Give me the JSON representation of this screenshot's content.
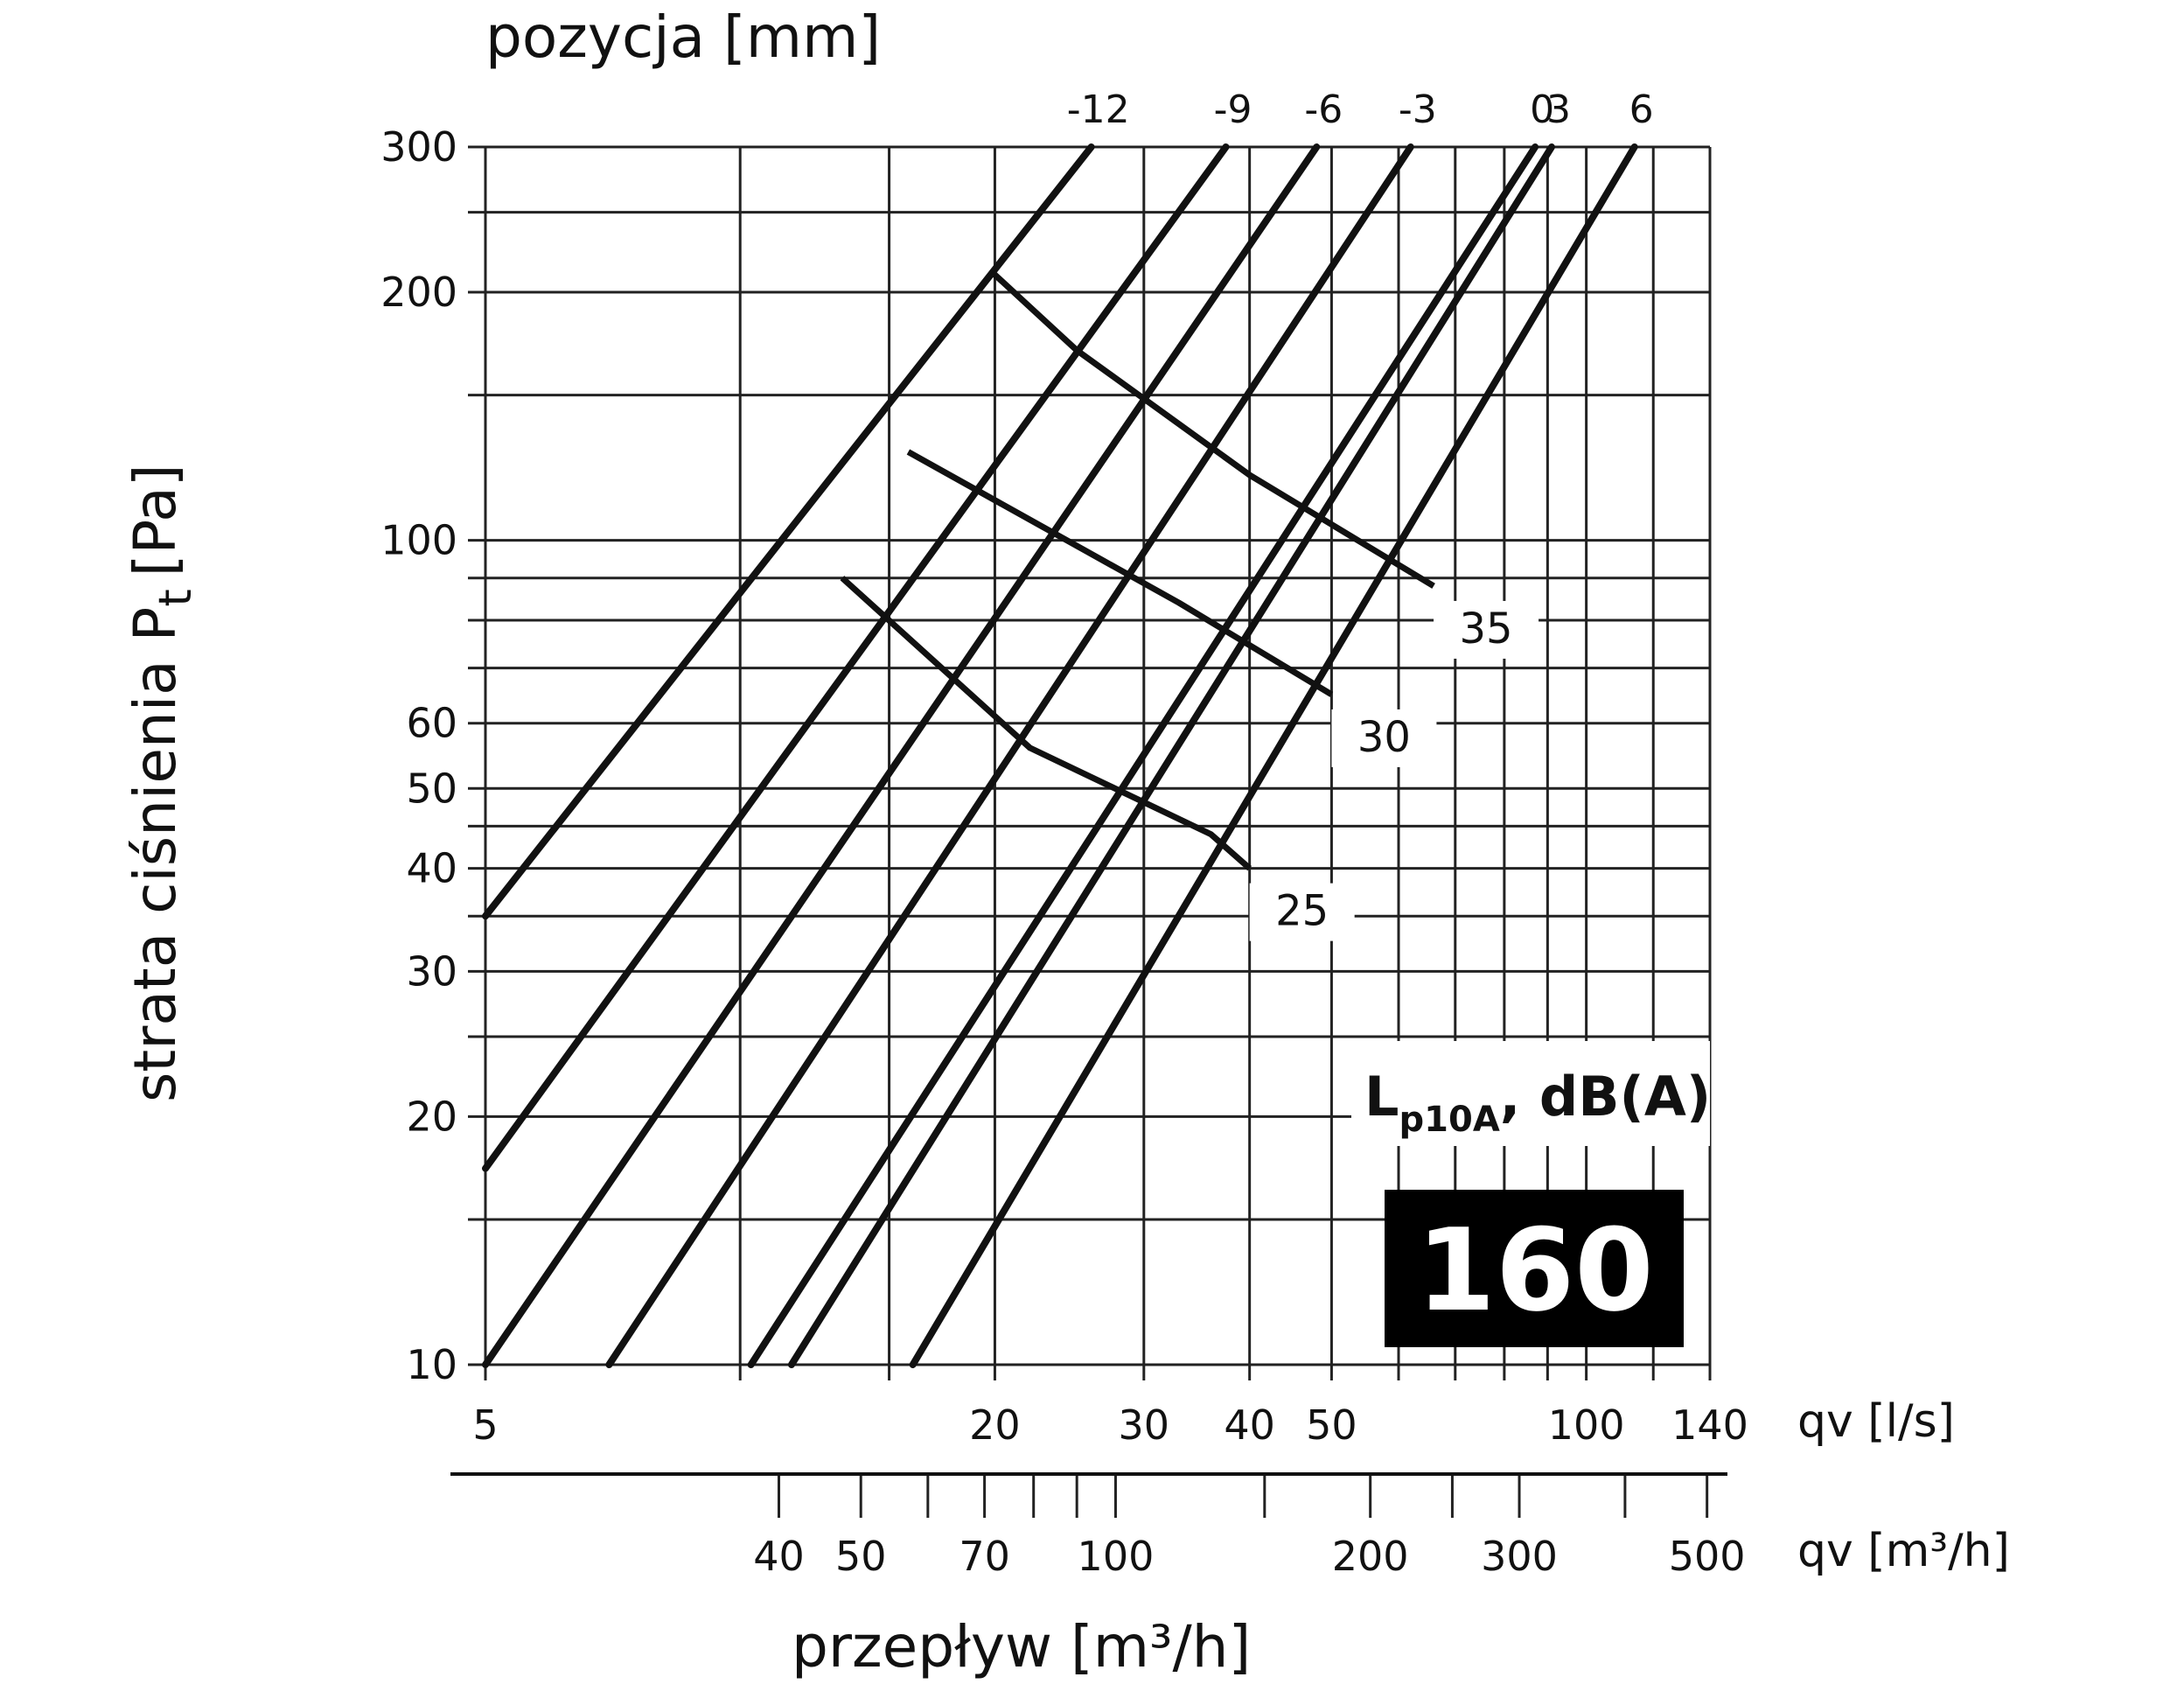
{
  "chart_data": {
    "type": "line",
    "title": "",
    "top_label": "pozycja [mm]",
    "ylabel": "strata ciśnienia P",
    "ylabel_sub": "t",
    "ylabel_unit": "[Pa]",
    "xlabel": "przepływ [m³/h]",
    "x_unit_ls": "qv [l/s]",
    "x_unit_m3h": "qv [m³/h]",
    "x_scale": "log",
    "y_scale": "log",
    "xlim_ls": [
      5,
      140
    ],
    "ylim": [
      10,
      300
    ],
    "grid": true,
    "y_ticks": [
      10,
      20,
      30,
      40,
      50,
      60,
      100,
      200,
      300
    ],
    "y_minor": [
      15,
      25,
      35,
      45,
      70,
      80,
      90,
      150,
      250
    ],
    "x_ticks_ls": [
      5,
      20,
      30,
      40,
      50,
      100,
      140
    ],
    "x_minor_ls": [
      10,
      15,
      60,
      70,
      80,
      90,
      120
    ],
    "x_ticks_m3h": [
      40,
      50,
      70,
      100,
      200,
      300,
      500
    ],
    "x_minor_m3h": [
      60,
      80,
      90,
      150,
      250,
      400
    ],
    "series": [
      {
        "name": "-12",
        "points": [
          [
            5,
            35
          ],
          [
            26,
            300
          ]
        ]
      },
      {
        "name": "-9",
        "points": [
          [
            5,
            17.3
          ],
          [
            37.5,
            300
          ]
        ]
      },
      {
        "name": "-6",
        "points": [
          [
            5,
            10
          ],
          [
            48,
            300
          ]
        ]
      },
      {
        "name": "-3",
        "points": [
          [
            7,
            10
          ],
          [
            62,
            300
          ]
        ]
      },
      {
        "name": "0",
        "points": [
          [
            10.3,
            10
          ],
          [
            87,
            300
          ]
        ]
      },
      {
        "name": "3",
        "points": [
          [
            11.5,
            10
          ],
          [
            91,
            300
          ]
        ]
      },
      {
        "name": "6",
        "points": [
          [
            16,
            10
          ],
          [
            114,
            300
          ]
        ]
      }
    ],
    "sound_curves": [
      {
        "label": "25",
        "points": [
          [
            13.2,
            90
          ],
          [
            22,
            56
          ],
          [
            36,
            44
          ],
          [
            40,
            40
          ]
        ]
      },
      {
        "label": "30",
        "points": [
          [
            15.8,
            128
          ],
          [
            33,
            84
          ],
          [
            50,
            65
          ]
        ]
      },
      {
        "label": "35",
        "points": [
          [
            20,
            210
          ],
          [
            25,
            170
          ],
          [
            40,
            120
          ],
          [
            66,
            88
          ]
        ]
      }
    ],
    "legend": "Lp10A, dB(A)",
    "legend_main": "L",
    "legend_sub": "p10A",
    "legend_rest": ", dB(A)",
    "badge": "160",
    "colors": {
      "lines": "#111111",
      "grid": "#222222",
      "badge_bg": "#000000",
      "badge_text": "#ffffff"
    }
  }
}
